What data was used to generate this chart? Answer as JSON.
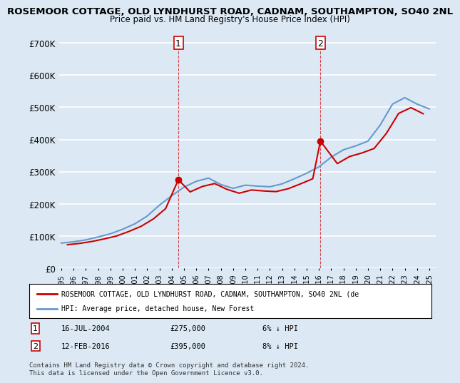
{
  "title": "ROSEMOOR COTTAGE, OLD LYNDHURST ROAD, CADNAM, SOUTHAMPTON, SO40 2NL",
  "subtitle": "Price paid vs. HM Land Registry's House Price Index (HPI)",
  "ylabel_ticks": [
    "£0",
    "£100K",
    "£200K",
    "£300K",
    "£400K",
    "£500K",
    "£600K",
    "£700K"
  ],
  "ytick_values": [
    0,
    100000,
    200000,
    300000,
    400000,
    500000,
    600000,
    700000
  ],
  "ylim": [
    0,
    720000
  ],
  "background_color": "#dce9f5",
  "plot_bg_color": "#dce9f5",
  "grid_color": "#ffffff",
  "sale1_x": 2004.54,
  "sale1_y": 275000,
  "sale1_label": "1",
  "sale2_x": 2016.12,
  "sale2_y": 395000,
  "sale2_label": "2",
  "sale_color": "#cc0000",
  "hpi_color": "#6699cc",
  "legend_label_red": "ROSEMOOR COTTAGE, OLD LYNDHURST ROAD, CADNAM, SOUTHAMPTON, SO40 2NL (de",
  "legend_label_blue": "HPI: Average price, detached house, New Forest",
  "annotation1": "1    16-JUL-2004         £275,000        6% ↓ HPI",
  "annotation2": "2    12-FEB-2016         £395,000        8% ↓ HPI",
  "footer": "Contains HM Land Registry data © Crown copyright and database right 2024.\nThis data is licensed under the Open Government Licence v3.0.",
  "hpi_years": [
    1995,
    1996,
    1997,
    1998,
    1999,
    2000,
    2001,
    2002,
    2003,
    2004,
    2005,
    2006,
    2007,
    2008,
    2009,
    2010,
    2011,
    2012,
    2013,
    2014,
    2015,
    2016,
    2017,
    2018,
    2019,
    2020,
    2021,
    2022,
    2023,
    2024,
    2025
  ],
  "hpi_values": [
    78000,
    82000,
    88000,
    97000,
    107000,
    121000,
    138000,
    162000,
    196000,
    225000,
    252000,
    270000,
    280000,
    260000,
    248000,
    258000,
    255000,
    253000,
    262000,
    278000,
    295000,
    315000,
    345000,
    368000,
    380000,
    395000,
    445000,
    510000,
    530000,
    510000,
    495000
  ],
  "price_paid_years": [
    1995.5,
    1996.5,
    1997.5,
    1998.5,
    1999.5,
    2000.5,
    2001.5,
    2002.5,
    2003.5,
    2004.54,
    2005.5,
    2006.5,
    2007.5,
    2008.5,
    2009.5,
    2010.5,
    2011.5,
    2012.5,
    2013.5,
    2014.5,
    2015.5,
    2016.12,
    2017.5,
    2018.5,
    2019.5,
    2020.5,
    2021.5,
    2022.5,
    2023.5,
    2024.5
  ],
  "price_paid_values": [
    73000,
    77000,
    83000,
    91000,
    100000,
    114000,
    130000,
    153000,
    185000,
    275000,
    237000,
    254000,
    263000,
    245000,
    233000,
    243000,
    240000,
    238000,
    247000,
    262000,
    278000,
    395000,
    325000,
    347000,
    358000,
    372000,
    419000,
    481000,
    499000,
    480000
  ],
  "xtick_years": [
    1995,
    1996,
    1997,
    1998,
    1999,
    2000,
    2001,
    2002,
    2003,
    2004,
    2005,
    2006,
    2007,
    2008,
    2009,
    2010,
    2011,
    2012,
    2013,
    2014,
    2015,
    2016,
    2017,
    2018,
    2019,
    2020,
    2021,
    2022,
    2023,
    2024,
    2025
  ]
}
